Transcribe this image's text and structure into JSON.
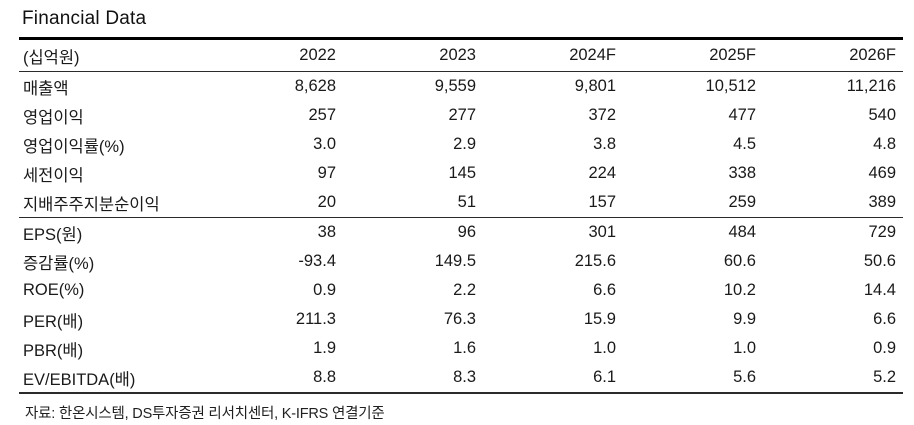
{
  "title": "Financial Data",
  "table": {
    "unit_label": "(십억원)",
    "columns": [
      "2022",
      "2023",
      "2024F",
      "2025F",
      "2026F"
    ],
    "rows": [
      {
        "label": "매출액",
        "values": [
          "8,628",
          "9,559",
          "9,801",
          "10,512",
          "11,216"
        ],
        "section_start": false
      },
      {
        "label": "영업이익",
        "values": [
          "257",
          "277",
          "372",
          "477",
          "540"
        ],
        "section_start": false
      },
      {
        "label": "영업이익률(%)",
        "values": [
          "3.0",
          "2.9",
          "3.8",
          "4.5",
          "4.8"
        ],
        "section_start": false
      },
      {
        "label": "세전이익",
        "values": [
          "97",
          "145",
          "224",
          "338",
          "469"
        ],
        "section_start": false
      },
      {
        "label": "지배주주지분순이익",
        "values": [
          "20",
          "51",
          "157",
          "259",
          "389"
        ],
        "section_start": false
      },
      {
        "label": "EPS(원)",
        "values": [
          "38",
          "96",
          "301",
          "484",
          "729"
        ],
        "section_start": true
      },
      {
        "label": "증감률(%)",
        "values": [
          "-93.4",
          "149.5",
          "215.6",
          "60.6",
          "50.6"
        ],
        "section_start": false
      },
      {
        "label": "ROE(%)",
        "values": [
          "0.9",
          "2.2",
          "6.6",
          "10.2",
          "14.4"
        ],
        "section_start": false
      },
      {
        "label": "PER(배)",
        "values": [
          "211.3",
          "76.3",
          "15.9",
          "9.9",
          "6.6"
        ],
        "section_start": false
      },
      {
        "label": "PBR(배)",
        "values": [
          "1.9",
          "1.6",
          "1.0",
          "1.0",
          "0.9"
        ],
        "section_start": false
      },
      {
        "label": "EV/EBITDA(배)",
        "values": [
          "8.8",
          "8.3",
          "6.1",
          "5.6",
          "5.2"
        ],
        "section_start": false
      }
    ]
  },
  "footer": {
    "source_note": "자료: 한온시스템, DS투자증권 리서치센터, K-IFRS 연결기준"
  },
  "colors": {
    "background": "#ffffff",
    "text": "#1a1a1a",
    "rule_heavy": "#000000",
    "rule_light": "#2b2b2b"
  }
}
